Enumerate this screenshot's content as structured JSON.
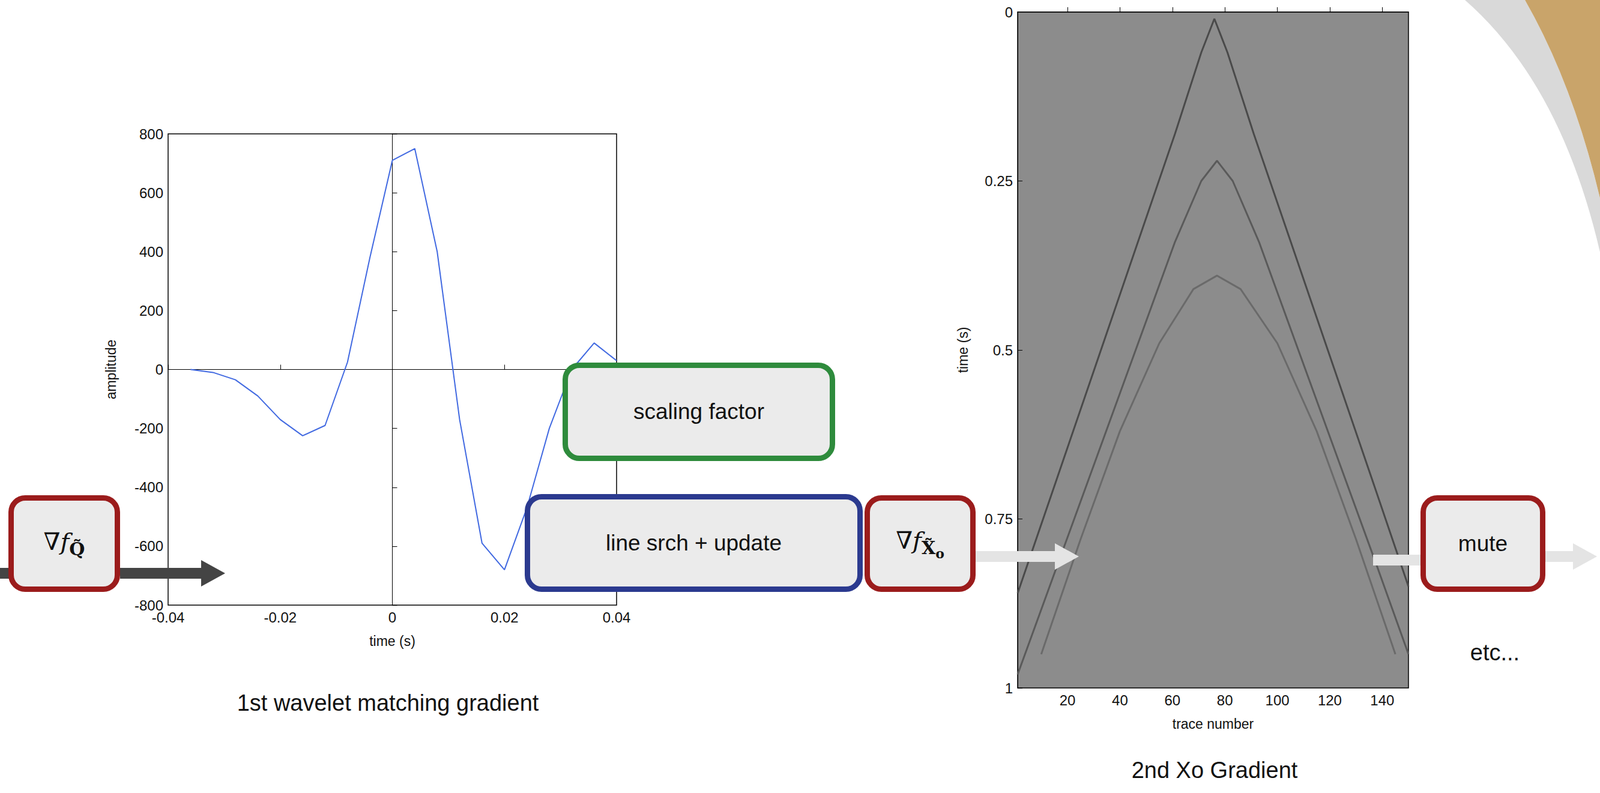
{
  "chart_data": [
    {
      "type": "line",
      "title": "1st wavelet matching gradient",
      "x_label": "time (s)",
      "y_label": "amplitude",
      "x": [
        -0.036,
        -0.032,
        -0.028,
        -0.024,
        -0.02,
        -0.016,
        -0.012,
        -0.008,
        -0.004,
        0,
        0.004,
        0.008,
        0.012,
        0.016,
        0.02,
        0.024,
        0.028,
        0.032,
        0.036,
        0.04
      ],
      "values": [
        0,
        -10,
        -35,
        -90,
        -170,
        -225,
        -190,
        25,
        380,
        710,
        750,
        400,
        -170,
        -590,
        -680,
        -470,
        -200,
        0,
        90,
        30
      ],
      "color": "#4169e1",
      "xlim": [
        -0.04,
        0.04
      ],
      "xticks": [
        -0.04,
        -0.02,
        0,
        0.02,
        0.04
      ],
      "ylim": [
        -800,
        800
      ],
      "yticks": [
        -800,
        -600,
        -400,
        -200,
        0,
        200,
        400,
        600,
        800
      ],
      "grid": false
    },
    {
      "type": "line",
      "title": "2nd Xo Gradient",
      "x_label": "trace number",
      "y_label": "time (s)",
      "xlim": [
        1,
        150
      ],
      "xticks": [
        20,
        40,
        60,
        80,
        100,
        120,
        140
      ],
      "ylim": [
        1,
        0
      ],
      "yticks": [
        0,
        0.25,
        0.5,
        0.75,
        1
      ],
      "grid": false,
      "series": [
        {
          "color": "#4a4a4a",
          "x": [
            1,
            16,
            31,
            46,
            61,
            71,
            76,
            81,
            91,
            106,
            121,
            136,
            150
          ],
          "values": [
            0.86,
            0.69,
            0.52,
            0.35,
            0.18,
            0.06,
            0.01,
            0.06,
            0.18,
            0.35,
            0.52,
            0.69,
            0.85
          ]
        },
        {
          "color": "#5a5a5a",
          "x": [
            1,
            16,
            31,
            46,
            61,
            71,
            77,
            83,
            93,
            108,
            123,
            138,
            150
          ],
          "values": [
            0.98,
            0.82,
            0.66,
            0.5,
            0.34,
            0.25,
            0.22,
            0.25,
            0.34,
            0.5,
            0.66,
            0.82,
            0.95
          ]
        },
        {
          "color": "#6a6a6a",
          "x": [
            10,
            25,
            40,
            55,
            68,
            77,
            86,
            100,
            115,
            130,
            145
          ],
          "values": [
            0.95,
            0.78,
            0.62,
            0.49,
            0.41,
            0.39,
            0.41,
            0.49,
            0.62,
            0.78,
            0.95
          ]
        }
      ]
    }
  ],
  "nodes": [
    {
      "label": "∇f",
      "subscript": "Q̃",
      "color": "#9b1c1c"
    },
    {
      "label": "scaling factor",
      "color": "#2e8b3c"
    },
    {
      "label": "line srch + update",
      "color": "#2b3a8f"
    },
    {
      "label": "∇f",
      "subscript": "X̃",
      "subsubscript": "o",
      "color": "#9b1c1c"
    },
    {
      "label": "mute",
      "color": "#9b1c1c"
    }
  ],
  "annotations": [
    "etc..."
  ]
}
